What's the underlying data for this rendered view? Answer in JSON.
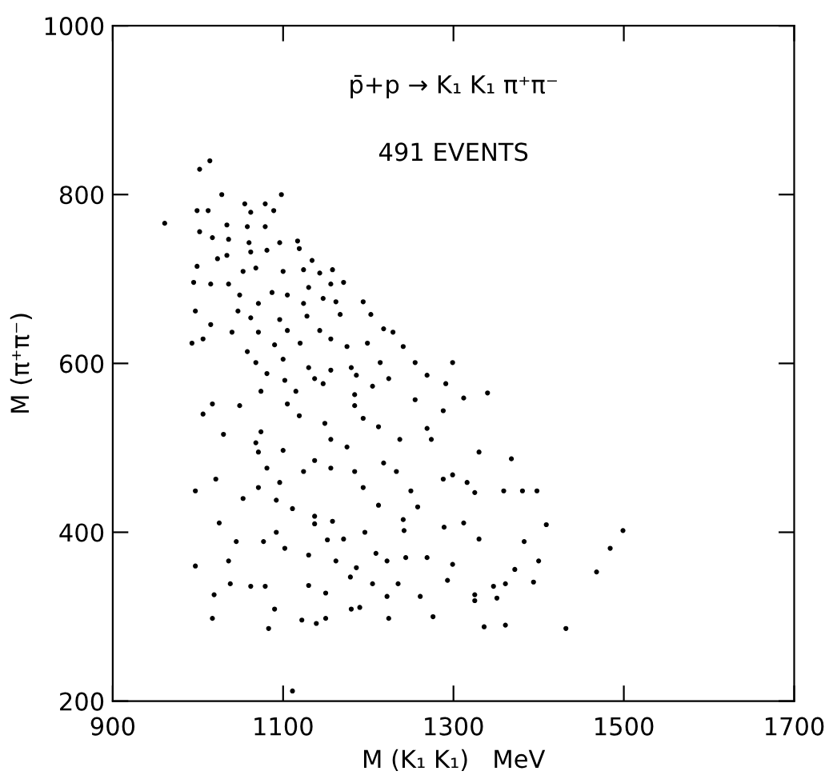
{
  "chart_data": {
    "type": "scatter",
    "xlabel": "M (K₁ K₁)   MeV",
    "ylabel": "M (π⁺π⁻)",
    "annotations": [
      "p̄+p → K₁ K₁ π⁺π⁻",
      "491 EVENTS"
    ],
    "xlim": [
      900,
      1700
    ],
    "xticks": [
      900,
      1100,
      1300,
      1500,
      1700
    ],
    "ylim": [
      200,
      1000
    ],
    "yticks": [
      200,
      400,
      600,
      800,
      1000
    ],
    "marker": "circle",
    "series": [
      {
        "color": "#000000",
        "x": [
          1014,
          1002,
          1028,
          1098,
          961,
          999,
          1012,
          1055,
          1079,
          1062,
          1089,
          1002,
          1034,
          1058,
          1079,
          1017,
          1036,
          1060,
          1096,
          1117,
          999,
          1023,
          1034,
          1062,
          1081,
          1119,
          1134,
          1053,
          1068,
          1100,
          1124,
          1143,
          1158,
          995,
          1015,
          1036,
          1087,
          1105,
          1130,
          1156,
          1171,
          1049,
          1071,
          1124,
          1147,
          1162,
          1194,
          997,
          1047,
          1096,
          1128,
          1167,
          1203,
          1015,
          1040,
          1062,
          993,
          1006,
          1071,
          1105,
          1143,
          1156,
          1218,
          1229,
          1058,
          1090,
          1120,
          1175,
          1199,
          1241,
          1068,
          1100,
          1130,
          1180,
          1214,
          1255,
          1299,
          1081,
          1102,
          1137,
          1156,
          1186,
          1224,
          1269,
          1074,
          1115,
          1147,
          1184,
          1205,
          1291,
          1312,
          1340,
          1017,
          1049,
          1006,
          1105,
          1184,
          1255,
          1288,
          1030,
          1074,
          1119,
          1149,
          1194,
          1212,
          1269,
          1071,
          1100,
          1156,
          1175,
          1237,
          1330,
          1068,
          1274,
          1368,
          997,
          1021,
          1053,
          1071,
          1081,
          1096,
          1124,
          1137,
          1156,
          1184,
          1194,
          1218,
          1233,
          1250,
          1288,
          1299,
          1316,
          1325,
          1359,
          1381,
          1398,
          1092,
          1111,
          1137,
          1158,
          1212,
          1241,
          1258,
          1025,
          1092,
          1077,
          1102,
          1137,
          1152,
          1171,
          1196,
          1242,
          1289,
          1312,
          1330,
          1045,
          997,
          1036,
          1130,
          1162,
          1186,
          1209,
          1222,
          1244,
          1269,
          1299,
          1383,
          1409,
          1499,
          1484,
          1372,
          1400,
          1468,
          1019,
          1038,
          1062,
          1079,
          1130,
          1150,
          1179,
          1205,
          1222,
          1235,
          1261,
          1293,
          1325,
          1347,
          1361,
          1394,
          1017,
          1090,
          1122,
          1139,
          1150,
          1180,
          1190,
          1224,
          1276,
          1325,
          1351,
          1083,
          1336,
          1361,
          1432,
          1111
        ],
        "values": [
          840,
          830,
          800,
          800,
          766,
          781,
          781,
          789,
          789,
          779,
          781,
          756,
          764,
          762,
          762,
          749,
          747,
          743,
          743,
          745,
          715,
          724,
          728,
          732,
          734,
          736,
          722,
          709,
          713,
          709,
          711,
          707,
          711,
          696,
          694,
          694,
          684,
          681,
          690,
          694,
          696,
          681,
          671,
          671,
          677,
          673,
          673,
          662,
          662,
          652,
          656,
          658,
          658,
          646,
          637,
          654,
          624,
          629,
          637,
          639,
          639,
          629,
          641,
          637,
          614,
          622,
          624,
          620,
          624,
          620,
          601,
          605,
          595,
          595,
          601,
          601,
          601,
          588,
          580,
          582,
          592,
          586,
          582,
          586,
          567,
          567,
          576,
          563,
          573,
          576,
          559,
          565,
          552,
          550,
          540,
          552,
          550,
          557,
          544,
          516,
          519,
          538,
          529,
          535,
          525,
          523,
          495,
          497,
          510,
          501,
          510,
          495,
          506,
          510,
          487,
          449,
          463,
          440,
          453,
          476,
          459,
          472,
          485,
          476,
          472,
          453,
          482,
          472,
          449,
          463,
          468,
          459,
          447,
          449,
          449,
          449,
          438,
          428,
          419,
          413,
          432,
          415,
          430,
          411,
          400,
          389,
          381,
          410,
          391,
          392,
          400,
          402,
          406,
          411,
          392,
          389,
          360,
          366,
          373,
          366,
          358,
          375,
          366,
          370,
          370,
          362,
          389,
          409,
          402,
          381,
          356,
          366,
          353,
          326,
          339,
          336,
          336,
          337,
          328,
          347,
          339,
          324,
          339,
          324,
          343,
          326,
          336,
          339,
          341,
          298,
          309,
          296,
          292,
          298,
          309,
          311,
          298,
          300,
          319,
          322,
          286,
          288,
          290,
          286,
          212
        ]
      }
    ]
  }
}
